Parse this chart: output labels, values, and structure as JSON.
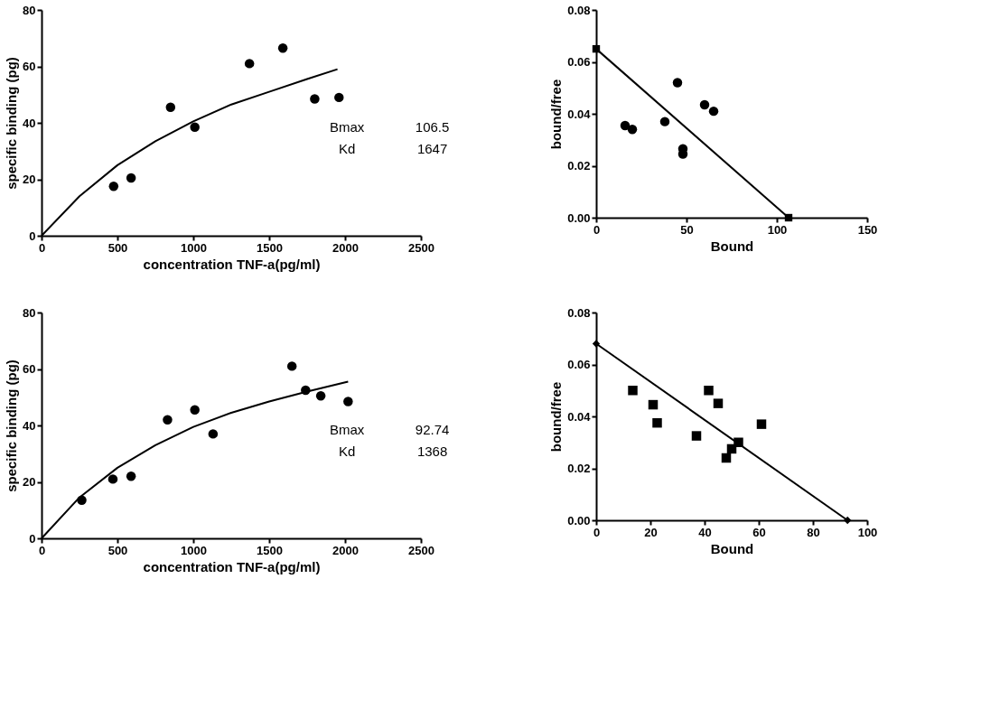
{
  "chart_data": [
    {
      "type": "scatter",
      "xlabel": "concentration TNF-a(pg/ml)",
      "ylabel": "specific binding (pg)",
      "xlim": [
        0,
        2500
      ],
      "xticks": [
        0,
        500,
        1000,
        1500,
        2000,
        2500
      ],
      "ylim": [
        0,
        80
      ],
      "yticks": [
        0,
        20,
        40,
        60,
        80
      ],
      "grid": false,
      "annotations": [
        "Bmax",
        "106.5",
        "Kd",
        "1647"
      ],
      "series": [
        {
          "marker": "circle",
          "color": "#000000",
          "x": [
            475,
            590,
            850,
            1010,
            1370,
            1590,
            1800,
            1960
          ],
          "values": [
            17.5,
            20.5,
            45.5,
            38.5,
            61,
            66.5,
            48.5,
            49
          ]
        },
        {
          "type": "line",
          "marker": "none",
          "color": "#000000",
          "x": [
            0,
            250,
            500,
            750,
            1000,
            1250,
            1500,
            1750,
            1950
          ],
          "values": [
            0,
            14,
            25,
            33.5,
            40.5,
            46.5,
            51,
            55.5,
            59
          ]
        }
      ]
    },
    {
      "type": "scatter",
      "xlabel": "Bound",
      "ylabel": "bound/free",
      "xlim": [
        0,
        150
      ],
      "xticks": [
        0,
        50,
        100,
        150
      ],
      "ylim": [
        0,
        0.08
      ],
      "yticks": [
        {
          "value": 0,
          "label": "0.00"
        },
        0.02,
        0.04,
        0.06,
        0.08
      ],
      "grid": false,
      "series": [
        {
          "marker": "circle",
          "color": "#000000",
          "x": [
            16,
            20,
            38,
            45,
            48,
            48,
            60,
            65
          ],
          "values": [
            0.0355,
            0.034,
            0.037,
            0.052,
            0.0265,
            0.0245,
            0.0435,
            0.041
          ]
        },
        {
          "type": "line",
          "marker": "square",
          "color": "#000000",
          "x": [
            0,
            106.5
          ],
          "values": [
            0.065,
            0
          ]
        }
      ]
    },
    {
      "type": "scatter",
      "xlabel": "concentration TNF-a(pg/ml)",
      "ylabel": "specific binding (pg)",
      "xlim": [
        0,
        2500
      ],
      "xticks": [
        0,
        500,
        1000,
        1500,
        2000,
        2500
      ],
      "ylim": [
        0,
        80
      ],
      "yticks": [
        0,
        20,
        40,
        60,
        80
      ],
      "grid": false,
      "annotations": [
        "Bmax",
        "92.74",
        "Kd",
        "1368"
      ],
      "series": [
        {
          "marker": "circle",
          "color": "#000000",
          "x": [
            265,
            470,
            590,
            830,
            1010,
            1130,
            1650,
            1740,
            1840,
            2020
          ],
          "values": [
            13.5,
            21,
            22,
            42,
            45.5,
            37,
            61,
            52.5,
            50.5,
            48.5
          ]
        },
        {
          "type": "line",
          "marker": "none",
          "color": "#000000",
          "x": [
            0,
            250,
            500,
            750,
            1000,
            1250,
            1500,
            1750,
            2020
          ],
          "values": [
            0,
            14.5,
            25,
            33,
            39.5,
            44.5,
            48.5,
            52,
            55.5
          ]
        }
      ]
    },
    {
      "type": "scatter",
      "xlabel": "Bound",
      "ylabel": "bound/free",
      "xlim": [
        0,
        100
      ],
      "xticks": [
        0,
        20,
        40,
        60,
        80,
        100
      ],
      "ylim": [
        0,
        0.08
      ],
      "yticks": [
        {
          "value": 0,
          "label": "0.00"
        },
        0.02,
        0.04,
        0.06,
        0.08
      ],
      "grid": false,
      "series": [
        {
          "marker": "square",
          "color": "#000000",
          "x": [
            13.5,
            21,
            22.5,
            37,
            41.5,
            45,
            48,
            50,
            52.5,
            61
          ],
          "values": [
            0.05,
            0.0445,
            0.0375,
            0.0325,
            0.05,
            0.045,
            0.024,
            0.0275,
            0.03,
            0.037
          ]
        },
        {
          "type": "line",
          "marker": "diamond",
          "color": "#000000",
          "x": [
            0,
            92.74
          ],
          "values": [
            0.068,
            0
          ]
        }
      ]
    }
  ]
}
